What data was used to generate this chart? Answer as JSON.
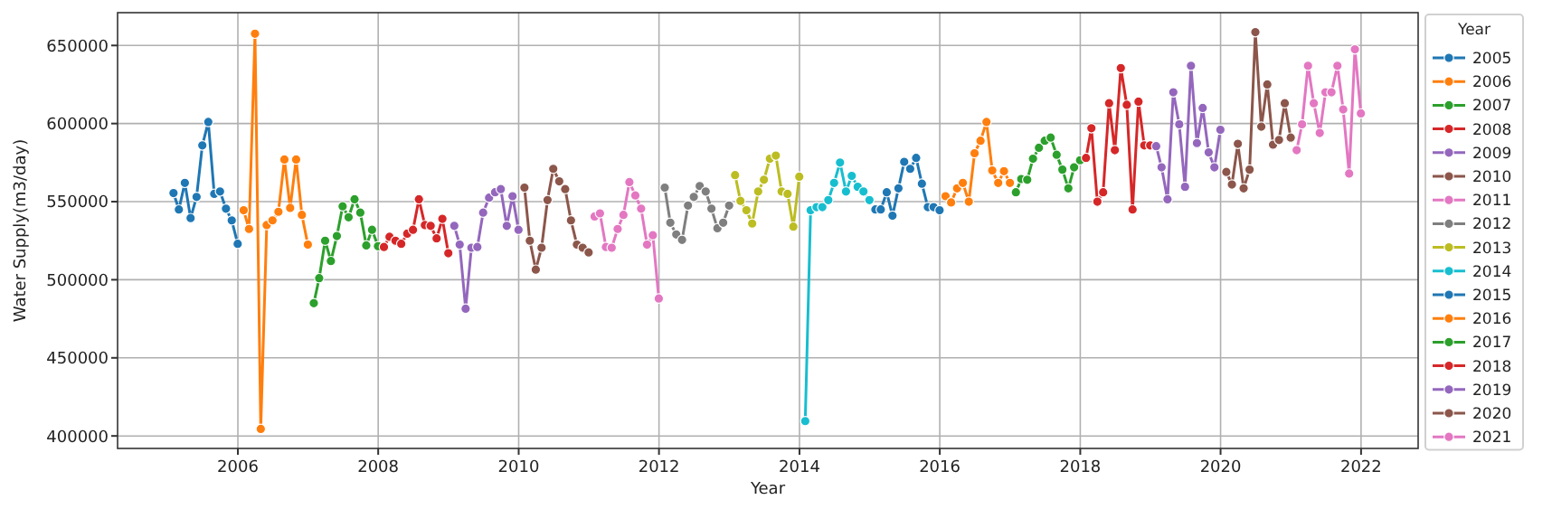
{
  "chart_data": {
    "type": "line",
    "xlabel": "Year",
    "ylabel": "Water Supply(m3/day)",
    "legend_title": "Year",
    "legend": "right",
    "grid": true,
    "marker": "circle",
    "line_style": "solid",
    "xlim": [
      "2004-04-15",
      "2022-10-25"
    ],
    "xticks": [
      "2006",
      "2008",
      "2010",
      "2012",
      "2014",
      "2016",
      "2018",
      "2020",
      "2022"
    ],
    "ylim": [
      392000,
      671000
    ],
    "yticks": [
      400000,
      450000,
      500000,
      550000,
      600000,
      650000
    ],
    "series": [
      {
        "name": "2005",
        "color": "#1f77b4",
        "x": [
          "2005-01-31",
          "2005-02-28",
          "2005-03-31",
          "2005-04-30",
          "2005-05-31",
          "2005-06-30",
          "2005-07-31",
          "2005-08-31",
          "2005-09-30",
          "2005-10-31",
          "2005-11-30",
          "2005-12-31"
        ],
        "values": [
          555500,
          545000,
          562000,
          539500,
          553000,
          586000,
          601000,
          555000,
          556500,
          545500,
          538000,
          523000
        ]
      },
      {
        "name": "2006",
        "color": "#ff7f0e",
        "x": [
          "2006-01-31",
          "2006-02-28",
          "2006-03-31",
          "2006-04-30",
          "2006-05-31",
          "2006-06-30",
          "2006-07-31",
          "2006-08-31",
          "2006-09-30",
          "2006-10-31",
          "2006-11-30",
          "2006-12-31"
        ],
        "values": [
          544500,
          532500,
          657500,
          404500,
          535000,
          538000,
          543500,
          577000,
          546000,
          577000,
          541500,
          522500
        ]
      },
      {
        "name": "2007",
        "color": "#2ca02c",
        "x": [
          "2007-01-31",
          "2007-02-28",
          "2007-03-31",
          "2007-04-30",
          "2007-05-31",
          "2007-06-30",
          "2007-07-31",
          "2007-08-31",
          "2007-09-30",
          "2007-10-31",
          "2007-11-30",
          "2007-12-31"
        ],
        "values": [
          485000,
          501000,
          525000,
          512000,
          528000,
          547000,
          540000,
          551500,
          543000,
          522000,
          532000,
          521500
        ]
      },
      {
        "name": "2008",
        "color": "#d62728",
        "x": [
          "2008-01-31",
          "2008-02-29",
          "2008-03-31",
          "2008-04-30",
          "2008-05-31",
          "2008-06-30",
          "2008-07-31",
          "2008-08-31",
          "2008-09-30",
          "2008-10-31",
          "2008-11-30",
          "2008-12-31"
        ],
        "values": [
          521000,
          527500,
          525000,
          523000,
          529500,
          532000,
          551500,
          535000,
          534500,
          526500,
          539000,
          517000
        ]
      },
      {
        "name": "2009",
        "color": "#9467bd",
        "x": [
          "2009-01-31",
          "2009-02-28",
          "2009-03-31",
          "2009-04-30",
          "2009-05-31",
          "2009-06-30",
          "2009-07-31",
          "2009-08-31",
          "2009-09-30",
          "2009-10-31",
          "2009-11-30",
          "2009-12-31"
        ],
        "values": [
          534500,
          522500,
          481500,
          520500,
          521000,
          543000,
          552500,
          556000,
          558000,
          534500,
          553500,
          532000
        ]
      },
      {
        "name": "2010",
        "color": "#8c564b",
        "x": [
          "2010-01-31",
          "2010-02-28",
          "2010-03-31",
          "2010-04-30",
          "2010-05-31",
          "2010-06-30",
          "2010-07-31",
          "2010-08-31",
          "2010-09-30",
          "2010-10-31",
          "2010-11-30",
          "2010-12-31"
        ],
        "values": [
          559000,
          525000,
          506500,
          520500,
          551000,
          571000,
          563000,
          558000,
          538000,
          522500,
          520500,
          517500
        ]
      },
      {
        "name": "2011",
        "color": "#e377c2",
        "x": [
          "2011-01-31",
          "2011-02-28",
          "2011-03-31",
          "2011-04-30",
          "2011-05-31",
          "2011-06-30",
          "2011-07-31",
          "2011-08-31",
          "2011-09-30",
          "2011-10-31",
          "2011-11-30",
          "2011-12-31"
        ],
        "values": [
          540500,
          542500,
          521000,
          520500,
          532500,
          541500,
          562500,
          554000,
          545500,
          522500,
          528500,
          488000
        ]
      },
      {
        "name": "2012",
        "color": "#7f7f7f",
        "x": [
          "2012-01-31",
          "2012-02-29",
          "2012-03-31",
          "2012-04-30",
          "2012-05-31",
          "2012-06-30",
          "2012-07-31",
          "2012-08-31",
          "2012-09-30",
          "2012-10-31",
          "2012-11-30",
          "2012-12-31"
        ],
        "values": [
          559000,
          536500,
          529000,
          525500,
          547500,
          553000,
          560000,
          556500,
          545500,
          533000,
          536500,
          547500
        ]
      },
      {
        "name": "2013",
        "color": "#bcbd22",
        "x": [
          "2013-01-31",
          "2013-02-28",
          "2013-03-31",
          "2013-04-30",
          "2013-05-31",
          "2013-06-30",
          "2013-07-31",
          "2013-08-31",
          "2013-09-30",
          "2013-10-31",
          "2013-11-30",
          "2013-12-31"
        ],
        "values": [
          567000,
          550500,
          544500,
          536000,
          556500,
          564000,
          577500,
          579500,
          556500,
          555000,
          534000,
          566000
        ]
      },
      {
        "name": "2014",
        "color": "#17becf",
        "x": [
          "2014-01-31",
          "2014-02-28",
          "2014-03-31",
          "2014-04-30",
          "2014-05-31",
          "2014-06-30",
          "2014-07-31",
          "2014-08-31",
          "2014-09-30",
          "2014-10-31",
          "2014-11-30",
          "2014-12-31"
        ],
        "values": [
          409500,
          544500,
          546500,
          546500,
          551000,
          562000,
          575000,
          556500,
          566500,
          559500,
          556500,
          551000
        ]
      },
      {
        "name": "2015",
        "color": "#1f77b4",
        "x": [
          "2015-01-31",
          "2015-02-28",
          "2015-03-31",
          "2015-04-30",
          "2015-05-31",
          "2015-06-30",
          "2015-07-31",
          "2015-08-31",
          "2015-09-30",
          "2015-10-31",
          "2015-11-30",
          "2015-12-31"
        ],
        "values": [
          545000,
          545000,
          556000,
          541000,
          558500,
          575500,
          571000,
          578000,
          561500,
          546500,
          546500,
          544500
        ]
      },
      {
        "name": "2016",
        "color": "#ff7f0e",
        "x": [
          "2016-01-31",
          "2016-02-29",
          "2016-03-31",
          "2016-04-30",
          "2016-05-31",
          "2016-06-30",
          "2016-07-31",
          "2016-08-31",
          "2016-09-30",
          "2016-10-31",
          "2016-11-30",
          "2016-12-31"
        ],
        "values": [
          553500,
          549500,
          558500,
          562000,
          550000,
          581000,
          589000,
          601000,
          570000,
          562000,
          569500,
          562000
        ]
      },
      {
        "name": "2017",
        "color": "#2ca02c",
        "x": [
          "2017-01-31",
          "2017-02-28",
          "2017-03-31",
          "2017-04-30",
          "2017-05-31",
          "2017-06-30",
          "2017-07-31",
          "2017-08-31",
          "2017-09-30",
          "2017-10-31",
          "2017-11-30",
          "2017-12-31"
        ],
        "values": [
          556000,
          564500,
          564000,
          577500,
          584500,
          589000,
          591000,
          580000,
          570500,
          558500,
          572000,
          576500
        ]
      },
      {
        "name": "2018",
        "color": "#d62728",
        "x": [
          "2018-01-31",
          "2018-02-28",
          "2018-03-31",
          "2018-04-30",
          "2018-05-31",
          "2018-06-30",
          "2018-07-31",
          "2018-08-31",
          "2018-09-30",
          "2018-10-31",
          "2018-11-30",
          "2018-12-31"
        ],
        "values": [
          578000,
          597000,
          550000,
          556000,
          613000,
          583000,
          635500,
          612000,
          545000,
          614000,
          586000,
          586000
        ]
      },
      {
        "name": "2019",
        "color": "#9467bd",
        "x": [
          "2019-01-31",
          "2019-02-28",
          "2019-03-31",
          "2019-04-30",
          "2019-05-31",
          "2019-06-30",
          "2019-07-31",
          "2019-08-31",
          "2019-09-30",
          "2019-10-31",
          "2019-11-30",
          "2019-12-31"
        ],
        "values": [
          585500,
          572000,
          551500,
          620000,
          599500,
          559500,
          637000,
          587500,
          610000,
          581500,
          572000,
          596000
        ]
      },
      {
        "name": "2020",
        "color": "#8c564b",
        "x": [
          "2020-01-31",
          "2020-02-29",
          "2020-03-31",
          "2020-04-30",
          "2020-05-31",
          "2020-06-30",
          "2020-07-31",
          "2020-08-31",
          "2020-09-30",
          "2020-10-31",
          "2020-11-30",
          "2020-12-31"
        ],
        "values": [
          569000,
          561000,
          587000,
          558500,
          570500,
          658500,
          598000,
          625000,
          586500,
          589500,
          613000,
          591000
        ]
      },
      {
        "name": "2021",
        "color": "#e377c2",
        "x": [
          "2021-01-31",
          "2021-02-28",
          "2021-03-31",
          "2021-04-30",
          "2021-05-31",
          "2021-06-30",
          "2021-07-31",
          "2021-08-31",
          "2021-09-30",
          "2021-10-31",
          "2021-11-30",
          "2021-12-31"
        ],
        "values": [
          583000,
          599500,
          637000,
          613000,
          594000,
          620000,
          620000,
          637000,
          609000,
          568000,
          647500,
          606500
        ]
      }
    ]
  }
}
